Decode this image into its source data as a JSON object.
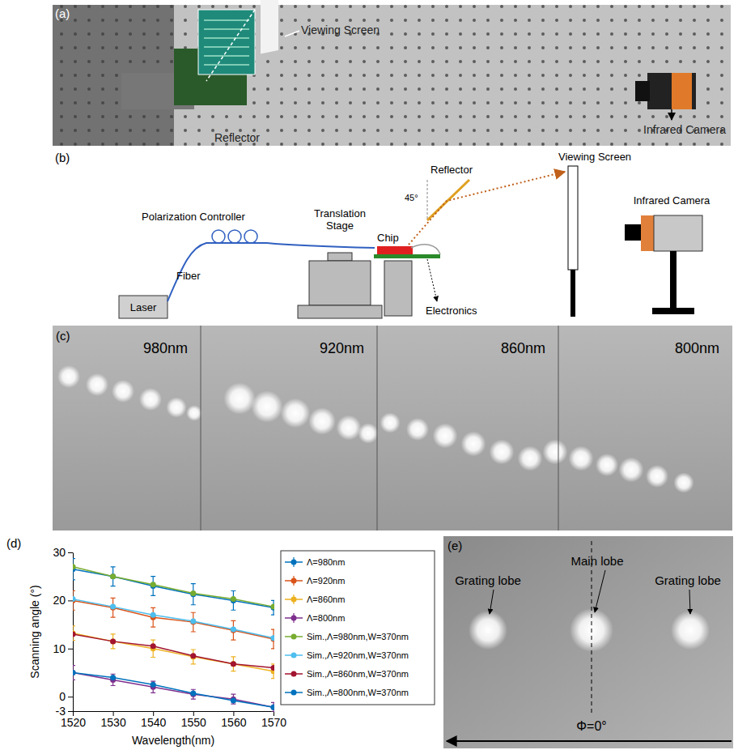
{
  "figure": {
    "panel_a": {
      "letter": "(a)",
      "labels": {
        "viewing_screen": "Viewing Screen",
        "infrared_camera": "Infrared Camera",
        "reflector": "Reflector"
      }
    },
    "panel_b": {
      "letter": "(b)",
      "labels": {
        "polarization_controller": "Polarization Controller",
        "translation_stage": "Translation Stage",
        "reflector": "Reflector",
        "angle": "45°",
        "viewing_screen": "Viewing Screen",
        "infrared_camera": "Infrared Camera",
        "laser": "Laser",
        "fiber": "Fiber",
        "chip": "Chip",
        "electronics": "Electronics"
      }
    },
    "panel_c": {
      "letter": "(c)",
      "periods": [
        "980nm",
        "920nm",
        "860nm",
        "800nm"
      ]
    },
    "panel_d": {
      "letter": "(d)"
    },
    "panel_e": {
      "letter": "(e)",
      "labels": {
        "grating_lobe_left": "Grating lobe",
        "main_lobe": "Main lobe",
        "grating_lobe_right": "Grating lobe",
        "phi": "Φ=0°"
      }
    }
  },
  "chart_data": {
    "type": "line",
    "x_label": "Wavelength(nm)",
    "y_label": "Scanning angle (°)",
    "x": [
      1520,
      1530,
      1540,
      1550,
      1560,
      1570
    ],
    "xlim": [
      1520,
      1570
    ],
    "xticks": [
      1520,
      1530,
      1540,
      1550,
      1560,
      1570
    ],
    "ylim": [
      -3,
      30
    ],
    "yticks": [
      -3,
      0,
      10,
      20,
      30
    ],
    "grid": false,
    "legend": "right",
    "series": [
      {
        "name": "Λ=980nm",
        "color": "#0072BD",
        "marker": "circle",
        "line_style": "solid",
        "values": [
          26.5,
          25.0,
          23.0,
          21.3,
          20.0,
          18.5
        ],
        "errors": [
          2.2,
          2.0,
          2.0,
          2.2,
          2.0,
          1.5
        ]
      },
      {
        "name": "Λ=920nm",
        "color": "#D95319",
        "marker": "circle",
        "line_style": "solid",
        "values": [
          20.0,
          18.5,
          16.5,
          15.5,
          13.8,
          12.0
        ],
        "errors": [
          2.0,
          2.0,
          2.0,
          2.0,
          2.0,
          2.0
        ]
      },
      {
        "name": "Λ=860nm",
        "color": "#EDB120",
        "marker": "circle",
        "line_style": "solid",
        "values": [
          13.2,
          11.5,
          10.0,
          8.3,
          6.8,
          5.3
        ],
        "errors": [
          1.5,
          1.5,
          1.8,
          1.5,
          1.5,
          1.5
        ]
      },
      {
        "name": "Λ=800nm",
        "color": "#7E2F8E",
        "marker": "circle",
        "line_style": "solid",
        "values": [
          5.0,
          3.5,
          2.0,
          0.5,
          -0.5,
          -2.2
        ],
        "errors": [
          1.5,
          1.2,
          1.2,
          1.0,
          1.0,
          1.0
        ]
      },
      {
        "name": "Sim.,Λ=980nm,W=370nm",
        "color": "#77AC30",
        "marker": "circle",
        "line_style": "solid",
        "values": [
          27.0,
          25.0,
          23.3,
          21.5,
          20.3,
          18.7
        ]
      },
      {
        "name": "Sim.,Λ=920nm,W=370nm",
        "color": "#4DBEEE",
        "marker": "circle",
        "line_style": "solid",
        "values": [
          20.3,
          18.7,
          17.0,
          15.7,
          14.0,
          12.2
        ]
      },
      {
        "name": "Sim.,Λ=860nm,W=370nm",
        "color": "#A2142F",
        "marker": "circle",
        "line_style": "solid",
        "values": [
          13.0,
          11.5,
          10.5,
          8.5,
          6.8,
          6.0
        ]
      },
      {
        "name": "Sim.,Λ=800nm,W=370nm",
        "color": "#0072BD",
        "marker": "circle",
        "line_style": "solid",
        "values": [
          5.0,
          4.0,
          2.5,
          0.7,
          -0.8,
          -2.2
        ]
      }
    ]
  }
}
